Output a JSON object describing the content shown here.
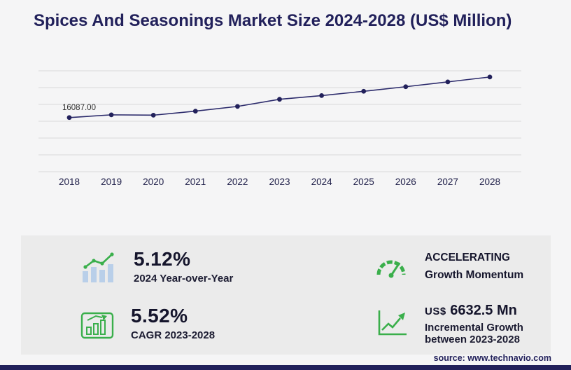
{
  "title": "Spices And Seasonings Market Size 2024-2028 (US$ Million)",
  "source_text": "source: www.technavio.com",
  "colors": {
    "navy": "#22215b",
    "chart_line": "#2b2a6b",
    "green": "#3aaf4b",
    "panel_bg": "#ebebeb",
    "page_bg": "#f5f5f6",
    "grid_line": "#d9d9d9",
    "bar_fill": "#b9cfe9"
  },
  "chart_data": {
    "type": "line",
    "title": "Spices And Seasonings Market Size 2024-2028 (US$ Million)",
    "unit": "US$ Million",
    "x": [
      2018,
      2019,
      2020,
      2021,
      2022,
      2023,
      2024,
      2025,
      2026,
      2027,
      2028
    ],
    "values": [
      16087.0,
      16900,
      16800,
      18000,
      19400,
      21521.5,
      22623.4,
      23900,
      25260,
      26690,
      28154
    ],
    "point_label": {
      "index": 0,
      "text": "16087.00"
    },
    "xlabel": "",
    "ylabel": "",
    "ylim": [
      0,
      30000
    ],
    "grid": true,
    "legend": false
  },
  "stats": [
    {
      "icon": "bar-chart-growth-icon",
      "value": "5.12%",
      "label": "2024 Year-over-Year"
    },
    {
      "icon": "speedometer-icon",
      "line1": "ACCELERATING",
      "line2": "Growth Momentum"
    },
    {
      "icon": "bar-chart-outline-icon",
      "value": "5.52%",
      "label": "CAGR 2023-2028"
    },
    {
      "icon": "growth-arrow-icon",
      "currency": "US$",
      "value": "6632.5 Mn",
      "label_line1": "Incremental Growth",
      "label_line2": "between 2023-2028"
    }
  ]
}
